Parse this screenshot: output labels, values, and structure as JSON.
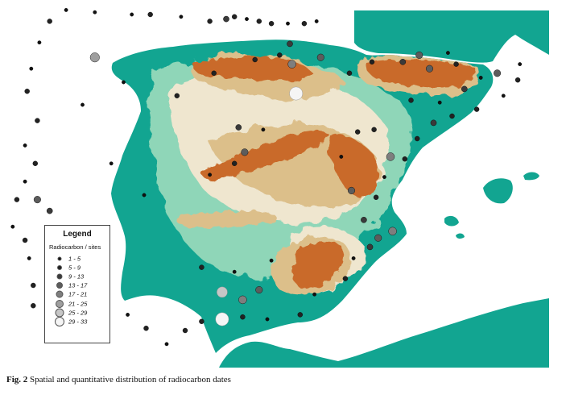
{
  "caption": {
    "label": "Fig. 2",
    "text": "Spatial and quantitative distribution of radiocarbon dates"
  },
  "legend": {
    "title": "Legend",
    "subtitle": "Radiocarbon / sites",
    "classes": [
      {
        "label": "1 - 5",
        "color": "#111111"
      },
      {
        "label": "5 - 9",
        "color": "#222222"
      },
      {
        "label": "9 - 13",
        "color": "#3a3a3a"
      },
      {
        "label": "13 - 17",
        "color": "#5c5c5c"
      },
      {
        "label": "17 - 21",
        "color": "#7e7e7e"
      },
      {
        "label": "21 - 25",
        "color": "#9e9e9e"
      },
      {
        "label": "25 - 29",
        "color": "#c6c6c6"
      },
      {
        "label": "29 - 33",
        "color": "#f5f5f5"
      }
    ]
  },
  "map_colors": {
    "sea": "#ffffff",
    "lowland": "#12a591",
    "plain": "#8fd6b8",
    "plateau": "#efe6cf",
    "hill": "#dcbf8a",
    "mountain": "#c96a2b"
  },
  "sites": [
    {
      "lon": -8.55,
      "lat": 42.88,
      "c": 0
    },
    {
      "lon": -8.3,
      "lat": 43.35,
      "c": 1
    },
    {
      "lon": -7.9,
      "lat": 43.6,
      "c": 0
    },
    {
      "lon": -7.2,
      "lat": 43.55,
      "c": 0
    },
    {
      "lon": -6.3,
      "lat": 43.5,
      "c": 0
    },
    {
      "lon": -5.85,
      "lat": 43.5,
      "c": 1
    },
    {
      "lon": -5.1,
      "lat": 43.45,
      "c": 0
    },
    {
      "lon": -4.4,
      "lat": 43.35,
      "c": 1
    },
    {
      "lon": -4.0,
      "lat": 43.4,
      "c": 2
    },
    {
      "lon": -3.8,
      "lat": 43.45,
      "c": 1
    },
    {
      "lon": -3.5,
      "lat": 43.4,
      "c": 0
    },
    {
      "lon": -3.2,
      "lat": 43.35,
      "c": 1
    },
    {
      "lon": -2.9,
      "lat": 43.3,
      "c": 1
    },
    {
      "lon": -2.5,
      "lat": 43.3,
      "c": 0
    },
    {
      "lon": -2.1,
      "lat": 43.3,
      "c": 1
    },
    {
      "lon": -1.8,
      "lat": 43.35,
      "c": 0
    },
    {
      "lon": -8.75,
      "lat": 42.3,
      "c": 0
    },
    {
      "lon": -8.85,
      "lat": 41.8,
      "c": 1
    },
    {
      "lon": -8.6,
      "lat": 41.15,
      "c": 1
    },
    {
      "lon": -8.9,
      "lat": 40.6,
      "c": 0
    },
    {
      "lon": -8.65,
      "lat": 40.2,
      "c": 1
    },
    {
      "lon": -8.9,
      "lat": 39.8,
      "c": 0
    },
    {
      "lon": -9.1,
      "lat": 39.4,
      "c": 1
    },
    {
      "lon": -9.2,
      "lat": 38.8,
      "c": 0
    },
    {
      "lon": -8.9,
      "lat": 38.5,
      "c": 1
    },
    {
      "lon": -8.8,
      "lat": 38.1,
      "c": 0
    },
    {
      "lon": -8.7,
      "lat": 37.5,
      "c": 1
    },
    {
      "lon": -8.7,
      "lat": 37.05,
      "c": 1
    },
    {
      "lon": -8.6,
      "lat": 39.4,
      "c": 3
    },
    {
      "lon": -8.3,
      "lat": 39.15,
      "c": 2
    },
    {
      "lon": -7.2,
      "lat": 42.55,
      "c": 5
    },
    {
      "lon": -8.0,
      "lat": 38.6,
      "c": 1
    },
    {
      "lon": -7.6,
      "lat": 38.35,
      "c": 0
    },
    {
      "lon": -7.9,
      "lat": 37.7,
      "c": 0
    },
    {
      "lon": -7.1,
      "lat": 37.25,
      "c": 1
    },
    {
      "lon": -6.4,
      "lat": 36.85,
      "c": 0
    },
    {
      "lon": -5.95,
      "lat": 36.55,
      "c": 1
    },
    {
      "lon": -5.45,
      "lat": 36.2,
      "c": 0
    },
    {
      "lon": -5.0,
      "lat": 36.5,
      "c": 1
    },
    {
      "lon": -4.6,
      "lat": 36.7,
      "c": 1
    },
    {
      "lon": -4.1,
      "lat": 36.75,
      "c": 7
    },
    {
      "lon": -3.6,
      "lat": 36.8,
      "c": 1
    },
    {
      "lon": -3.0,
      "lat": 36.75,
      "c": 0
    },
    {
      "lon": -2.2,
      "lat": 36.85,
      "c": 1
    },
    {
      "lon": -1.85,
      "lat": 37.3,
      "c": 0
    },
    {
      "lon": -4.1,
      "lat": 37.35,
      "c": 6
    },
    {
      "lon": -3.6,
      "lat": 37.18,
      "c": 4
    },
    {
      "lon": -3.2,
      "lat": 37.4,
      "c": 3
    },
    {
      "lon": -4.6,
      "lat": 37.9,
      "c": 1
    },
    {
      "lon": -3.8,
      "lat": 37.8,
      "c": 0
    },
    {
      "lon": -2.9,
      "lat": 38.05,
      "c": 0
    },
    {
      "lon": -1.1,
      "lat": 37.65,
      "c": 1
    },
    {
      "lon": -0.9,
      "lat": 38.1,
      "c": 0
    },
    {
      "lon": -0.5,
      "lat": 38.35,
      "c": 2
    },
    {
      "lon": -0.3,
      "lat": 38.55,
      "c": 3
    },
    {
      "lon": 0.05,
      "lat": 38.7,
      "c": 4
    },
    {
      "lon": -0.65,
      "lat": 38.95,
      "c": 2
    },
    {
      "lon": -0.35,
      "lat": 39.45,
      "c": 1
    },
    {
      "lon": -0.15,
      "lat": 39.9,
      "c": 0
    },
    {
      "lon": 0.35,
      "lat": 40.3,
      "c": 1
    },
    {
      "lon": 0.65,
      "lat": 40.75,
      "c": 1
    },
    {
      "lon": 1.05,
      "lat": 41.1,
      "c": 2
    },
    {
      "lon": 1.5,
      "lat": 41.25,
      "c": 1
    },
    {
      "lon": 2.1,
      "lat": 41.4,
      "c": 1
    },
    {
      "lon": 2.75,
      "lat": 41.7,
      "c": 0
    },
    {
      "lon": 3.1,
      "lat": 42.05,
      "c": 1
    },
    {
      "lon": 3.15,
      "lat": 42.4,
      "c": 0
    },
    {
      "lon": 0.0,
      "lat": 40.35,
      "c": 4
    },
    {
      "lon": -0.95,
      "lat": 39.6,
      "c": 3
    },
    {
      "lon": -0.4,
      "lat": 40.95,
      "c": 1
    },
    {
      "lon": 0.5,
      "lat": 41.6,
      "c": 1
    },
    {
      "lon": 1.2,
      "lat": 41.55,
      "c": 0
    },
    {
      "lon": 1.8,
      "lat": 41.85,
      "c": 2
    },
    {
      "lon": 2.2,
      "lat": 42.1,
      "c": 0
    },
    {
      "lon": 2.6,
      "lat": 42.2,
      "c": 3
    },
    {
      "lon": 1.6,
      "lat": 42.4,
      "c": 1
    },
    {
      "lon": 0.95,
      "lat": 42.3,
      "c": 3
    },
    {
      "lon": 0.3,
      "lat": 42.45,
      "c": 2
    },
    {
      "lon": -0.45,
      "lat": 42.45,
      "c": 1
    },
    {
      "lon": -1.0,
      "lat": 42.2,
      "c": 1
    },
    {
      "lon": -1.7,
      "lat": 42.55,
      "c": 3
    },
    {
      "lon": -2.45,
      "lat": 42.85,
      "c": 2
    },
    {
      "lon": -2.7,
      "lat": 42.6,
      "c": 1
    },
    {
      "lon": -2.4,
      "lat": 42.4,
      "c": 4
    },
    {
      "lon": -3.3,
      "lat": 42.5,
      "c": 1
    },
    {
      "lon": -4.3,
      "lat": 42.2,
      "c": 1
    },
    {
      "lon": -5.2,
      "lat": 41.7,
      "c": 1
    },
    {
      "lon": -2.3,
      "lat": 41.75,
      "c": 7
    },
    {
      "lon": -3.7,
      "lat": 41.0,
      "c": 2
    },
    {
      "lon": -3.1,
      "lat": 40.95,
      "c": 0
    },
    {
      "lon": -3.55,
      "lat": 40.45,
      "c": 3
    },
    {
      "lon": -3.8,
      "lat": 40.2,
      "c": 1
    },
    {
      "lon": -4.4,
      "lat": 39.95,
      "c": 0
    },
    {
      "lon": -1.2,
      "lat": 40.35,
      "c": 0
    },
    {
      "lon": -0.8,
      "lat": 40.9,
      "c": 1
    },
    {
      "lon": -6.0,
      "lat": 39.5,
      "c": 0
    },
    {
      "lon": -6.8,
      "lat": 40.2,
      "c": 0
    },
    {
      "lon": -7.5,
      "lat": 41.5,
      "c": 0
    },
    {
      "lon": -6.5,
      "lat": 42.0,
      "c": 0
    },
    {
      "lon": 1.4,
      "lat": 42.65,
      "c": 0
    },
    {
      "lon": 0.7,
      "lat": 42.6,
      "c": 3
    }
  ]
}
